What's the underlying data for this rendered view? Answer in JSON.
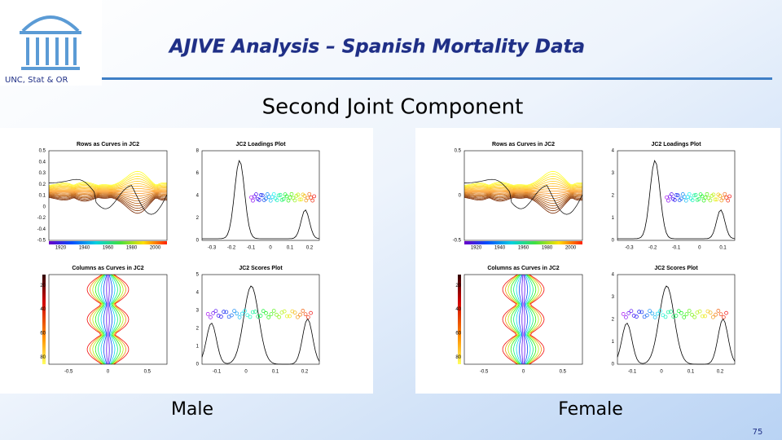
{
  "header": {
    "title": "AJIVE Analysis – Spanish Mortality Data",
    "affiliation": "UNC, Stat & OR"
  },
  "subtitle": "Second Joint Component",
  "panels": [
    {
      "label": "Male",
      "plots": [
        {
          "title": "Rows as Curves in JC2",
          "yticks": [
            "0.5",
            "0.4",
            "0.3",
            "0.2",
            "0.1",
            "0",
            "-0.2",
            "-0.4",
            "-0.5"
          ],
          "xticks": [
            "1920",
            "1940",
            "1960",
            "1980",
            "2000"
          ]
        },
        {
          "title": "JC2 Loadings Plot",
          "yticks": [
            "8",
            "6",
            "4",
            "2",
            "0"
          ],
          "xticks": [
            "-0.3",
            "-0.2",
            "-0.1",
            "0",
            "0.1",
            "0.2"
          ]
        },
        {
          "title": "Columns as Curves in JC2",
          "yticks": [
            "20",
            "40",
            "60",
            "80"
          ],
          "xticks": [
            "-0.5",
            "0",
            "0.5"
          ]
        },
        {
          "title": "JC2 Scores Plot",
          "yticks": [
            "5",
            "4",
            "3",
            "2",
            "1",
            "0"
          ],
          "xticks": [
            "-0.1",
            "0",
            "0.1",
            "0.2"
          ]
        }
      ]
    },
    {
      "label": "Female",
      "plots": [
        {
          "title": "Rows as Curves in JC2",
          "yticks": [
            "0.5",
            "0",
            "-0.5"
          ],
          "xticks": [
            "1920",
            "1940",
            "1960",
            "1980",
            "2000"
          ]
        },
        {
          "title": "JC2 Loadings Plot",
          "yticks": [
            "4",
            "3",
            "2",
            "1",
            "0"
          ],
          "xticks": [
            "-0.3",
            "-0.2",
            "-0.1",
            "0",
            "0.1"
          ]
        },
        {
          "title": "Columns as Curves in JC2",
          "yticks": [
            "20",
            "40",
            "60",
            "80"
          ],
          "xticks": [
            "-0.5",
            "0",
            "0.5"
          ]
        },
        {
          "title": "JC2 Scores Plot",
          "yticks": [
            "4",
            "3",
            "2",
            "1",
            "0"
          ],
          "xticks": [
            "-0.1",
            "0",
            "0.1",
            "0.2"
          ]
        }
      ]
    }
  ],
  "page_number": "75"
}
